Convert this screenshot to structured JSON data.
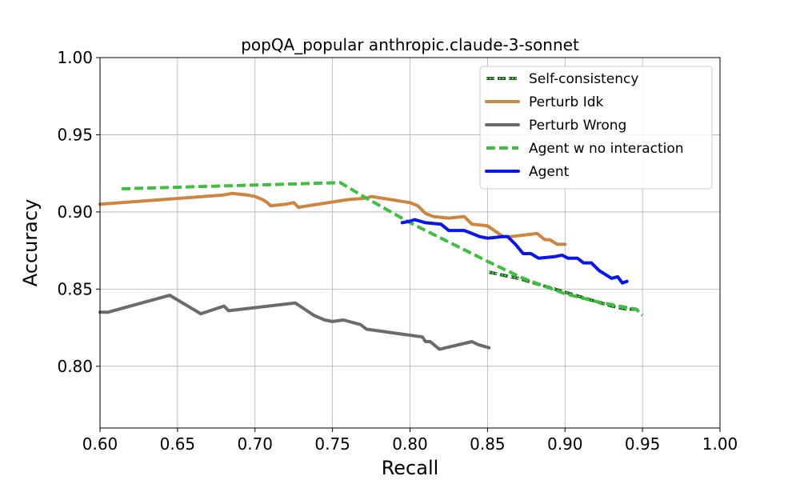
{
  "chart_data": {
    "type": "line",
    "title": "popQA_popular anthropic.claude-3-sonnet",
    "xlabel": "Recall",
    "ylabel": "Accuracy",
    "xlim": [
      0.6,
      1.0
    ],
    "ylim": [
      0.76,
      1.0
    ],
    "xticks": [
      "0.60",
      "0.65",
      "0.70",
      "0.75",
      "0.80",
      "0.85",
      "0.90",
      "0.95",
      "1.00"
    ],
    "yticks": [
      "0.80",
      "0.85",
      "0.90",
      "0.95",
      "1.00"
    ],
    "grid": true,
    "legend_position": "upper-right",
    "series": [
      {
        "name": "Self-consistency",
        "color": "#1a6b1a",
        "style": "dotted-dash",
        "points": [
          [
            0.851,
            0.861
          ],
          [
            0.86,
            0.859
          ],
          [
            0.87,
            0.857
          ],
          [
            0.88,
            0.854
          ],
          [
            0.89,
            0.851
          ],
          [
            0.9,
            0.848
          ],
          [
            0.91,
            0.845
          ],
          [
            0.92,
            0.842
          ],
          [
            0.93,
            0.839
          ],
          [
            0.94,
            0.837
          ],
          [
            0.946,
            0.837
          ]
        ]
      },
      {
        "name": "Perturb Idk",
        "color": "#cd853f",
        "style": "solid",
        "points": [
          [
            0.6,
            0.905
          ],
          [
            0.68,
            0.911
          ],
          [
            0.685,
            0.912
          ],
          [
            0.695,
            0.911
          ],
          [
            0.7,
            0.91
          ],
          [
            0.705,
            0.908
          ],
          [
            0.708,
            0.906
          ],
          [
            0.71,
            0.904
          ],
          [
            0.72,
            0.905
          ],
          [
            0.725,
            0.906
          ],
          [
            0.728,
            0.903
          ],
          [
            0.76,
            0.908
          ],
          [
            0.772,
            0.909
          ],
          [
            0.775,
            0.91
          ],
          [
            0.8,
            0.906
          ],
          [
            0.805,
            0.904
          ],
          [
            0.81,
            0.899
          ],
          [
            0.815,
            0.897
          ],
          [
            0.825,
            0.896
          ],
          [
            0.835,
            0.897
          ],
          [
            0.84,
            0.892
          ],
          [
            0.85,
            0.891
          ],
          [
            0.86,
            0.884
          ],
          [
            0.865,
            0.884
          ],
          [
            0.882,
            0.886
          ],
          [
            0.887,
            0.882
          ],
          [
            0.89,
            0.882
          ],
          [
            0.895,
            0.879
          ],
          [
            0.9,
            0.879
          ]
        ]
      },
      {
        "name": "Perturb Wrong",
        "color": "#6b6b6b",
        "style": "solid",
        "points": [
          [
            0.6,
            0.835
          ],
          [
            0.605,
            0.835
          ],
          [
            0.645,
            0.846
          ],
          [
            0.655,
            0.84
          ],
          [
            0.665,
            0.834
          ],
          [
            0.68,
            0.839
          ],
          [
            0.683,
            0.836
          ],
          [
            0.726,
            0.841
          ],
          [
            0.738,
            0.833
          ],
          [
            0.745,
            0.83
          ],
          [
            0.75,
            0.829
          ],
          [
            0.757,
            0.83
          ],
          [
            0.768,
            0.827
          ],
          [
            0.772,
            0.824
          ],
          [
            0.808,
            0.819
          ],
          [
            0.81,
            0.816
          ],
          [
            0.813,
            0.816
          ],
          [
            0.819,
            0.811
          ],
          [
            0.84,
            0.816
          ],
          [
            0.844,
            0.814
          ],
          [
            0.851,
            0.812
          ]
        ]
      },
      {
        "name": "Agent w no interaction",
        "color": "#3fbf3f",
        "style": "dashed",
        "points": [
          [
            0.614,
            0.915
          ],
          [
            0.755,
            0.919
          ],
          [
            0.77,
            0.91
          ],
          [
            0.8,
            0.893
          ],
          [
            0.85,
            0.868
          ],
          [
            0.873,
            0.857
          ],
          [
            0.9,
            0.847
          ],
          [
            0.92,
            0.842
          ],
          [
            0.94,
            0.838
          ],
          [
            0.946,
            0.837
          ],
          [
            0.95,
            0.833
          ]
        ]
      },
      {
        "name": "Agent",
        "color": "#0a14f0",
        "style": "solid",
        "points": [
          [
            0.795,
            0.893
          ],
          [
            0.8,
            0.894
          ],
          [
            0.803,
            0.895
          ],
          [
            0.81,
            0.893
          ],
          [
            0.82,
            0.892
          ],
          [
            0.825,
            0.888
          ],
          [
            0.835,
            0.888
          ],
          [
            0.84,
            0.886
          ],
          [
            0.845,
            0.884
          ],
          [
            0.85,
            0.883
          ],
          [
            0.86,
            0.884
          ],
          [
            0.863,
            0.884
          ],
          [
            0.868,
            0.879
          ],
          [
            0.873,
            0.873
          ],
          [
            0.878,
            0.873
          ],
          [
            0.883,
            0.87
          ],
          [
            0.893,
            0.871
          ],
          [
            0.898,
            0.872
          ],
          [
            0.902,
            0.87
          ],
          [
            0.908,
            0.87
          ],
          [
            0.912,
            0.867
          ],
          [
            0.917,
            0.867
          ],
          [
            0.922,
            0.862
          ],
          [
            0.93,
            0.857
          ],
          [
            0.934,
            0.858
          ],
          [
            0.937,
            0.854
          ],
          [
            0.94,
            0.855
          ]
        ]
      }
    ]
  }
}
